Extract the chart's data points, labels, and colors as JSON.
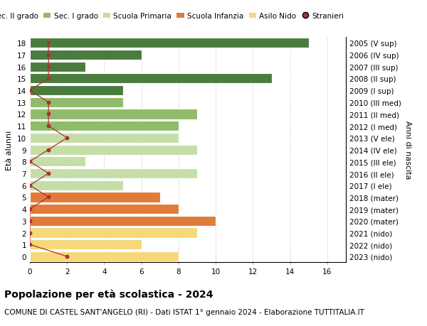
{
  "ages": [
    18,
    17,
    16,
    15,
    14,
    13,
    12,
    11,
    10,
    9,
    8,
    7,
    6,
    5,
    4,
    3,
    2,
    1,
    0
  ],
  "birth_years": [
    "2005 (V sup)",
    "2006 (IV sup)",
    "2007 (III sup)",
    "2008 (II sup)",
    "2009 (I sup)",
    "2010 (III med)",
    "2011 (II med)",
    "2012 (I med)",
    "2013 (V ele)",
    "2014 (IV ele)",
    "2015 (III ele)",
    "2016 (II ele)",
    "2017 (I ele)",
    "2018 (mater)",
    "2019 (mater)",
    "2020 (mater)",
    "2021 (nido)",
    "2022 (nido)",
    "2023 (nido)"
  ],
  "bar_values": [
    15,
    6,
    3,
    13,
    5,
    5,
    9,
    8,
    8,
    9,
    3,
    9,
    5,
    7,
    8,
    10,
    9,
    6,
    8
  ],
  "bar_colors": [
    "#4a7c3f",
    "#4a7c3f",
    "#4a7c3f",
    "#4a7c3f",
    "#4a7c3f",
    "#8fbc6a",
    "#8fbc6a",
    "#8fbc6a",
    "#c5dea8",
    "#c5dea8",
    "#c5dea8",
    "#c5dea8",
    "#c5dea8",
    "#e07b39",
    "#e07b39",
    "#e07b39",
    "#f5d87a",
    "#f5d87a",
    "#f5d87a"
  ],
  "stranieri_x": [
    1,
    1,
    1,
    1,
    0,
    1,
    1,
    1,
    2,
    1,
    0,
    1,
    0,
    1,
    0,
    0,
    0,
    0,
    2
  ],
  "xlabel": "Età alunni",
  "ylabel_left": "Età alunni",
  "ylabel_right": "Anni di nascita",
  "title": "Popolazione per età scolastica - 2024",
  "subtitle": "COMUNE DI CASTEL SANT'ANGELO (RI) - Dati ISTAT 1° gennaio 2024 - Elaborazione TUTTITALIA.IT",
  "xlim_max": 17,
  "xticks": [
    0,
    2,
    4,
    6,
    8,
    10,
    12,
    14,
    16
  ],
  "legend_labels": [
    "Sec. II grado",
    "Sec. I grado",
    "Scuola Primaria",
    "Scuola Infanzia",
    "Asilo Nido",
    "Stranieri"
  ],
  "legend_colors": [
    "#4a7c3f",
    "#8fbc6a",
    "#c5dea8",
    "#e07b39",
    "#f5d87a",
    "#c0392b"
  ],
  "stranieri_color": "#b03030",
  "grid_color": "#cccccc",
  "bg_color": "#ffffff",
  "bar_edge_color": "#ffffff",
  "title_fontsize": 10,
  "subtitle_fontsize": 7.5,
  "ylabel_fontsize": 8,
  "tick_fontsize": 7.5,
  "legend_fontsize": 7.5
}
